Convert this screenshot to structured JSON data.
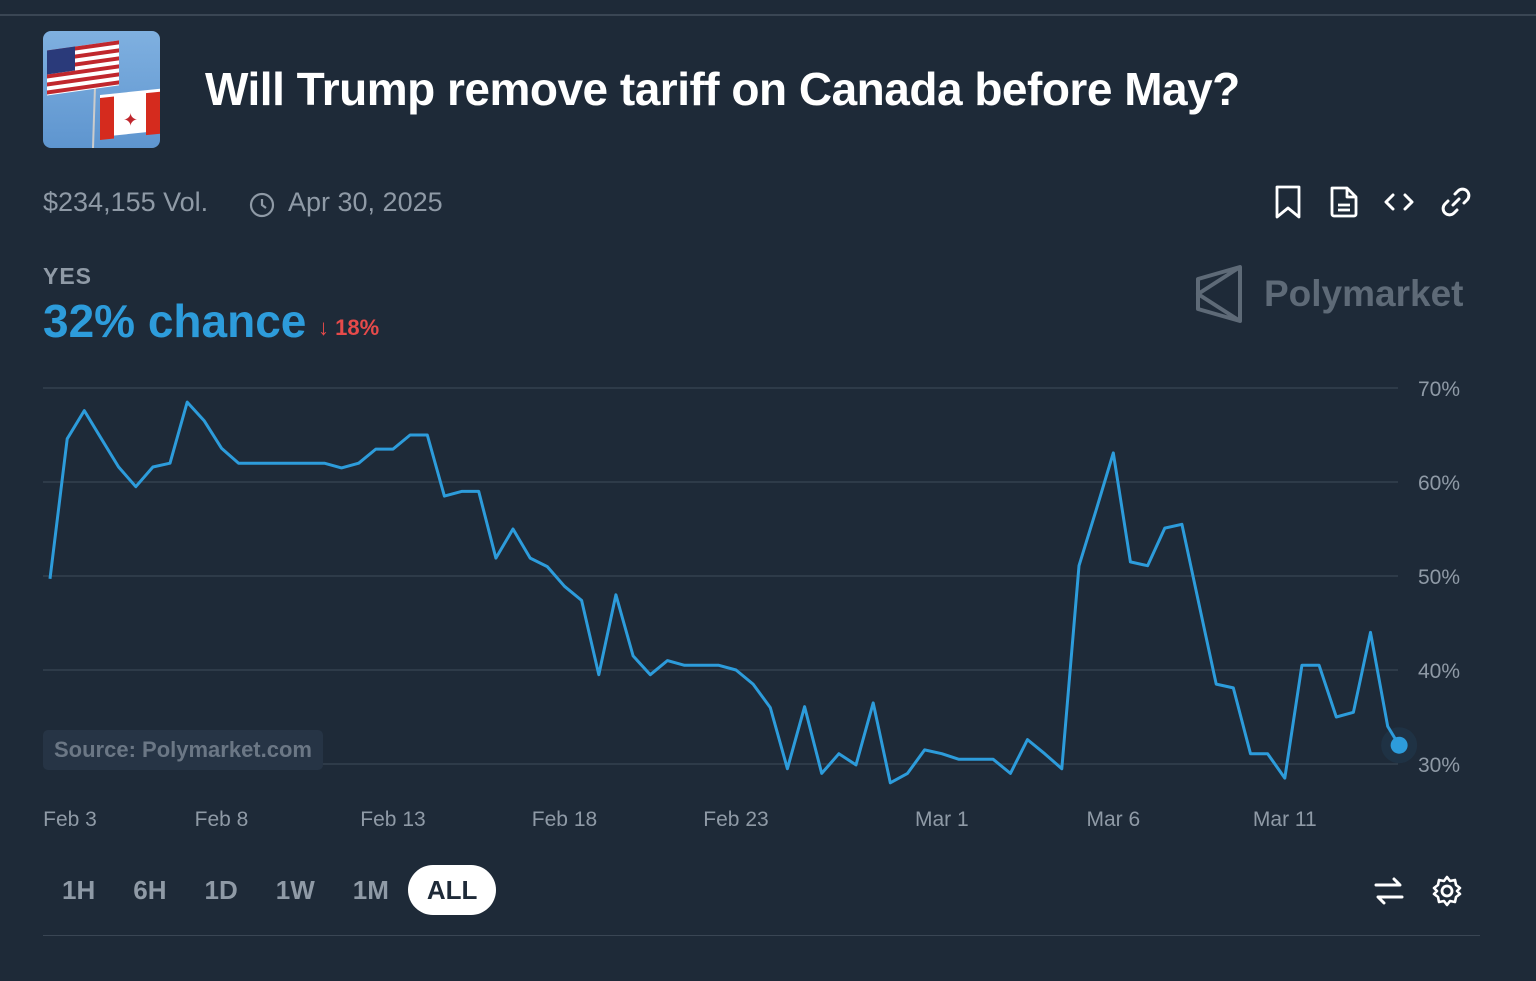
{
  "header": {
    "title": "Will Trump remove tariff on Canada before May?",
    "volume": "$234,155 Vol.",
    "end_date": "Apr 30, 2025",
    "icons": [
      "bookmark-icon",
      "document-icon",
      "code-icon",
      "link-icon"
    ]
  },
  "outcome": {
    "label": "YES",
    "chance": "32% chance",
    "change": "18%",
    "change_direction": "down"
  },
  "brand": {
    "name": "Polymarket"
  },
  "source": "Source: Polymarket.com",
  "time_ranges": [
    {
      "label": "1H",
      "active": false
    },
    {
      "label": "6H",
      "active": false
    },
    {
      "label": "1D",
      "active": false
    },
    {
      "label": "1W",
      "active": false
    },
    {
      "label": "1M",
      "active": false
    },
    {
      "label": "ALL",
      "active": true
    }
  ],
  "footer_icons": [
    "swap-icon",
    "settings-icon"
  ],
  "colors": {
    "background": "#1e2a38",
    "line": "#2d9cdb",
    "down": "#e64a4a",
    "grid": "#34414f"
  },
  "chart_data": {
    "type": "line",
    "title": "",
    "xlabel": "",
    "ylabel": "",
    "grid": true,
    "ylim": [
      30,
      70
    ],
    "y_ticks": [
      "70%",
      "60%",
      "50%",
      "40%",
      "30%"
    ],
    "y_tick_values": [
      70,
      60,
      50,
      40,
      30
    ],
    "x_ticks": [
      {
        "label": "Feb 3",
        "date": "2025-02-03T00:00"
      },
      {
        "label": "Feb 8",
        "date": "2025-02-08T00:00"
      },
      {
        "label": "Feb 13",
        "date": "2025-02-13T00:00"
      },
      {
        "label": "Feb 18",
        "date": "2025-02-18T00:00"
      },
      {
        "label": "Feb 23",
        "date": "2025-02-23T00:00"
      },
      {
        "label": "Mar 1",
        "date": "2025-03-01T00:00"
      },
      {
        "label": "Mar 6",
        "date": "2025-03-06T00:00"
      },
      {
        "label": "Mar 11",
        "date": "2025-03-11T00:00"
      }
    ],
    "series": [
      {
        "x": [
          "2025-02-03T00:00",
          "2025-02-03T12:00",
          "2025-02-04T00:00",
          "2025-02-04T12:00",
          "2025-02-05T00:00",
          "2025-02-05T12:00",
          "2025-02-06T00:00",
          "2025-02-06T12:00",
          "2025-02-07T00:00",
          "2025-02-07T12:00",
          "2025-02-08T00:00",
          "2025-02-08T12:00",
          "2025-02-09T00:00",
          "2025-02-09T12:00",
          "2025-02-10T00:00",
          "2025-02-10T12:00",
          "2025-02-11T00:00",
          "2025-02-11T12:00",
          "2025-02-12T00:00",
          "2025-02-12T12:00",
          "2025-02-13T00:00",
          "2025-02-13T12:00",
          "2025-02-14T00:00",
          "2025-02-14T12:00",
          "2025-02-15T00:00",
          "2025-02-15T12:00",
          "2025-02-16T00:00",
          "2025-02-16T12:00",
          "2025-02-17T00:00",
          "2025-02-17T12:00",
          "2025-02-18T00:00",
          "2025-02-18T12:00",
          "2025-02-19T00:00",
          "2025-02-19T12:00",
          "2025-02-20T00:00",
          "2025-02-20T12:00",
          "2025-02-21T00:00",
          "2025-02-21T12:00",
          "2025-02-22T00:00",
          "2025-02-22T12:00",
          "2025-02-23T00:00",
          "2025-02-23T12:00",
          "2025-02-24T00:00",
          "2025-02-24T12:00",
          "2025-02-25T00:00",
          "2025-02-25T12:00",
          "2025-02-26T00:00",
          "2025-02-26T12:00",
          "2025-02-27T00:00",
          "2025-02-27T12:00",
          "2025-02-28T00:00",
          "2025-02-28T12:00",
          "2025-03-01T00:00",
          "2025-03-01T12:00",
          "2025-03-02T00:00",
          "2025-03-02T12:00",
          "2025-03-03T00:00",
          "2025-03-03T12:00",
          "2025-03-04T00:00",
          "2025-03-04T12:00",
          "2025-03-05T00:00",
          "2025-03-05T12:00",
          "2025-03-06T00:00",
          "2025-03-06T12:00",
          "2025-03-07T00:00",
          "2025-03-07T12:00",
          "2025-03-08T00:00",
          "2025-03-08T12:00",
          "2025-03-09T00:00",
          "2025-03-09T12:00",
          "2025-03-10T00:00",
          "2025-03-10T12:00",
          "2025-03-11T00:00",
          "2025-03-11T12:00",
          "2025-03-12T00:00",
          "2025-03-12T12:00",
          "2025-03-13T00:00",
          "2025-03-13T12:00",
          "2025-03-14T00:00",
          "2025-03-14T08:00"
        ],
        "y": [
          49.7,
          64.6,
          67.6,
          64.6,
          61.6,
          59.5,
          61.6,
          62.0,
          68.5,
          66.5,
          63.6,
          62.0,
          62.0,
          62.0,
          62.0,
          62.0,
          62.0,
          61.5,
          62.0,
          63.5,
          63.5,
          65.0,
          65.0,
          58.5,
          59.0,
          59.0,
          51.9,
          55.0,
          51.9,
          51.0,
          48.9,
          47.4,
          39.5,
          48.0,
          41.5,
          39.5,
          41.0,
          40.5,
          40.5,
          40.5,
          40.0,
          38.5,
          36.0,
          29.5,
          36.1,
          29.0,
          31.1,
          29.9,
          36.5,
          28.0,
          29.0,
          31.5,
          31.1,
          30.5,
          30.5,
          30.5,
          29.0,
          32.6,
          31.1,
          29.5,
          51.1,
          57.0,
          63.1,
          51.5,
          51.1,
          55.1,
          55.5,
          47.0,
          38.5,
          38.1,
          31.1,
          31.1,
          28.5,
          40.5,
          40.5,
          35.0,
          35.5,
          44.0,
          34.0,
          32.0
        ]
      }
    ]
  }
}
